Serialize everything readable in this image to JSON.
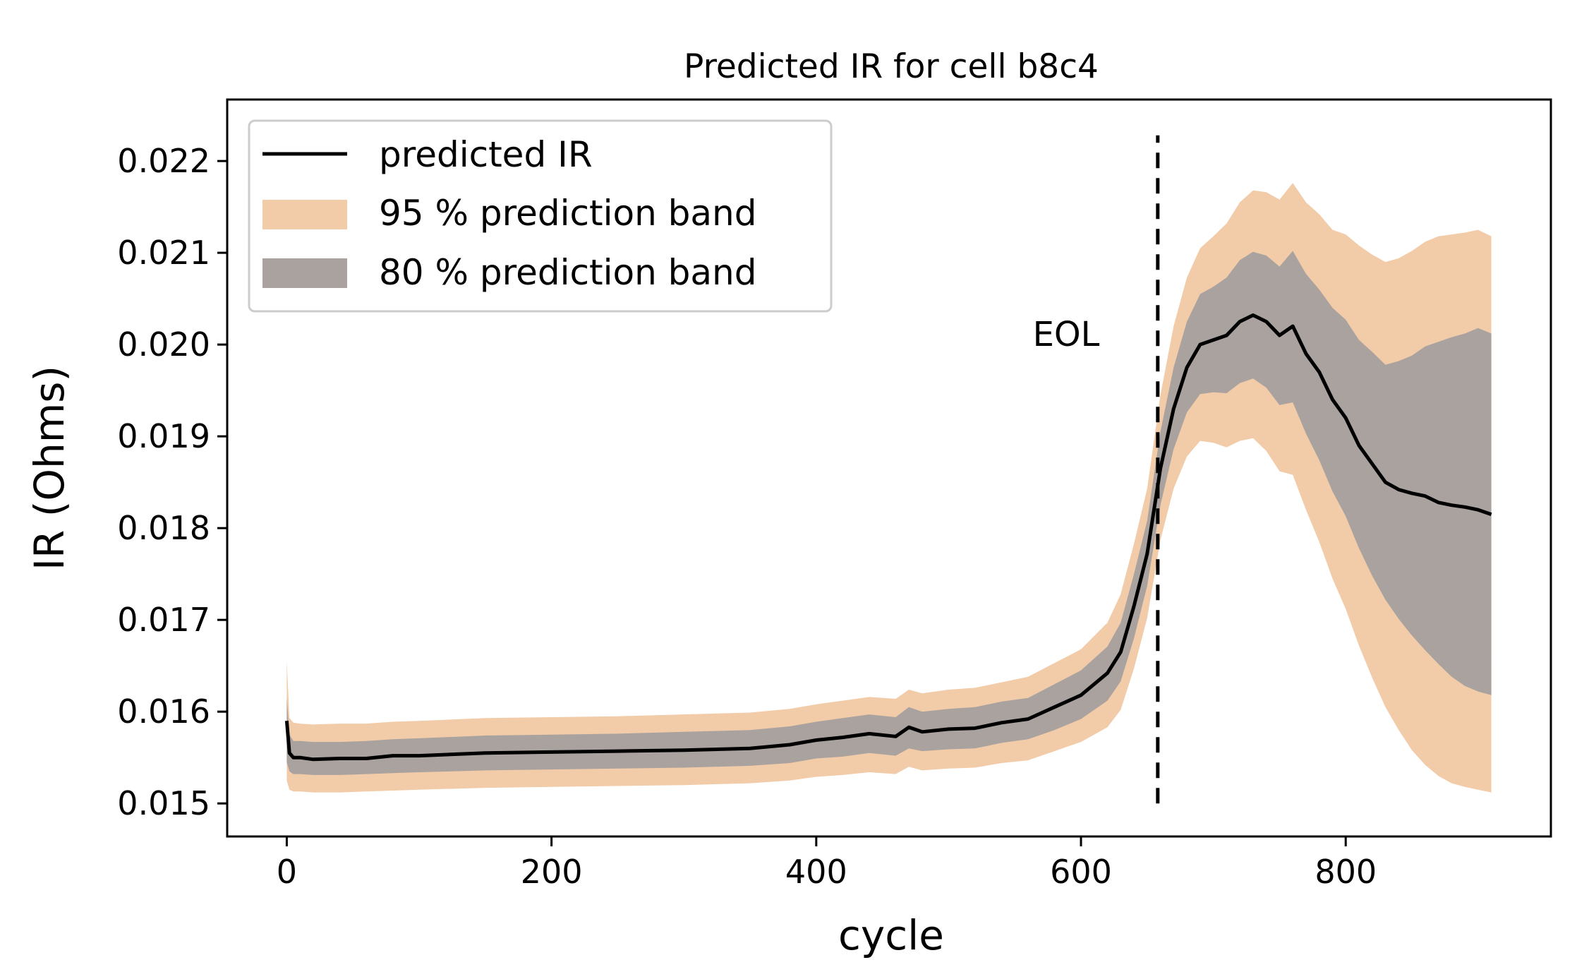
{
  "chart_data": {
    "type": "line",
    "title": "Predicted IR for cell b8c4",
    "xlabel": "cycle",
    "ylabel": "IR (Ohms)",
    "xlim": [
      -45,
      955
    ],
    "ylim": [
      0.01464,
      0.02267
    ],
    "xticks": [
      {
        "value": 0,
        "label": "0"
      },
      {
        "value": 200,
        "label": "200"
      },
      {
        "value": 400,
        "label": "400"
      },
      {
        "value": 600,
        "label": "600"
      },
      {
        "value": 800,
        "label": "800"
      }
    ],
    "yticks": [
      {
        "value": 0.015,
        "label": "0.015"
      },
      {
        "value": 0.016,
        "label": "0.016"
      },
      {
        "value": 0.017,
        "label": "0.017"
      },
      {
        "value": 0.018,
        "label": "0.018"
      },
      {
        "value": 0.019,
        "label": "0.019"
      },
      {
        "value": 0.02,
        "label": "0.020"
      },
      {
        "value": 0.021,
        "label": "0.021"
      },
      {
        "value": 0.022,
        "label": "0.022"
      }
    ],
    "grid": false,
    "legend_position": "top-left",
    "x": [
      0,
      2,
      5,
      10,
      20,
      40,
      60,
      80,
      100,
      150,
      200,
      250,
      300,
      350,
      380,
      400,
      420,
      440,
      460,
      470,
      480,
      500,
      520,
      540,
      560,
      580,
      600,
      620,
      630,
      640,
      650,
      660,
      670,
      680,
      690,
      700,
      710,
      720,
      730,
      740,
      750,
      760,
      770,
      780,
      790,
      800,
      810,
      820,
      830,
      840,
      850,
      860,
      870,
      880,
      890,
      900,
      910
    ],
    "series": [
      {
        "name": "predicted IR",
        "color": "#000000",
        "values": [
          0.0159,
          0.01555,
          0.0155,
          0.0155,
          0.01548,
          0.01549,
          0.01549,
          0.01552,
          0.01552,
          0.01555,
          0.01556,
          0.01557,
          0.01558,
          0.0156,
          0.01564,
          0.01569,
          0.01572,
          0.01576,
          0.01573,
          0.01583,
          0.01578,
          0.01581,
          0.01582,
          0.01588,
          0.01592,
          0.01605,
          0.01618,
          0.01642,
          0.01665,
          0.01715,
          0.01772,
          0.01865,
          0.0193,
          0.01975,
          0.02,
          0.02005,
          0.0201,
          0.02025,
          0.02032,
          0.02025,
          0.0201,
          0.0202,
          0.0199,
          0.0197,
          0.0194,
          0.0192,
          0.0189,
          0.0187,
          0.0185,
          0.01842,
          0.01838,
          0.01835,
          0.01828,
          0.01825,
          0.01823,
          0.0182,
          0.01815
        ]
      },
      {
        "name": "95 % prediction band",
        "color": "#f2cba8",
        "lower": [
          0.01525,
          0.01515,
          0.01513,
          0.01513,
          0.01512,
          0.01512,
          0.01513,
          0.01514,
          0.01515,
          0.01517,
          0.01518,
          0.01519,
          0.0152,
          0.01522,
          0.01525,
          0.01529,
          0.01531,
          0.01534,
          0.01532,
          0.0154,
          0.01536,
          0.01538,
          0.01539,
          0.01544,
          0.01547,
          0.01557,
          0.01567,
          0.01583,
          0.01602,
          0.01647,
          0.01702,
          0.01787,
          0.01843,
          0.01878,
          0.01895,
          0.01893,
          0.01888,
          0.01895,
          0.01898,
          0.01884,
          0.01862,
          0.01858,
          0.0182,
          0.01785,
          0.01745,
          0.01712,
          0.01672,
          0.01637,
          0.01605,
          0.0158,
          0.01558,
          0.01542,
          0.0153,
          0.01522,
          0.01518,
          0.01515,
          0.01512
        ],
        "upper": [
          0.01655,
          0.01593,
          0.01588,
          0.01587,
          0.01586,
          0.01587,
          0.01587,
          0.01589,
          0.0159,
          0.01593,
          0.01594,
          0.01595,
          0.01597,
          0.01599,
          0.01603,
          0.01608,
          0.01612,
          0.01616,
          0.01614,
          0.01624,
          0.0162,
          0.01624,
          0.01626,
          0.01632,
          0.01638,
          0.01653,
          0.01668,
          0.01697,
          0.01728,
          0.01783,
          0.01843,
          0.01945,
          0.0202,
          0.02073,
          0.02105,
          0.02118,
          0.02132,
          0.02155,
          0.02168,
          0.02166,
          0.02158,
          0.02176,
          0.02155,
          0.02142,
          0.02125,
          0.0212,
          0.02108,
          0.02098,
          0.0209,
          0.02094,
          0.02102,
          0.02112,
          0.02118,
          0.0212,
          0.02122,
          0.02125,
          0.02118
        ]
      },
      {
        "name": "80 % prediction band",
        "color": "#a9a29f",
        "lower": [
          0.01545,
          0.01535,
          0.01532,
          0.01532,
          0.01531,
          0.01531,
          0.01532,
          0.01533,
          0.01534,
          0.01536,
          0.01537,
          0.01538,
          0.01539,
          0.01541,
          0.01544,
          0.01549,
          0.01551,
          0.01555,
          0.01552,
          0.0156,
          0.01557,
          0.01559,
          0.0156,
          0.01566,
          0.0157,
          0.0158,
          0.01592,
          0.01612,
          0.01633,
          0.0168,
          0.01737,
          0.01825,
          0.01886,
          0.01926,
          0.01946,
          0.01948,
          0.01947,
          0.01958,
          0.01963,
          0.01953,
          0.01934,
          0.01937,
          0.01903,
          0.01874,
          0.0184,
          0.01813,
          0.01778,
          0.01748,
          0.01722,
          0.01701,
          0.01683,
          0.01667,
          0.01652,
          0.01638,
          0.01628,
          0.01622,
          0.01618
        ],
        "upper": [
          0.01615,
          0.01575,
          0.01568,
          0.01568,
          0.01567,
          0.01567,
          0.01568,
          0.0157,
          0.01571,
          0.01574,
          0.01575,
          0.01576,
          0.01578,
          0.0158,
          0.01584,
          0.01589,
          0.01593,
          0.01597,
          0.01594,
          0.01605,
          0.016,
          0.01603,
          0.01605,
          0.01611,
          0.01615,
          0.0163,
          0.01645,
          0.01671,
          0.01697,
          0.0175,
          0.01808,
          0.01905,
          0.01975,
          0.02025,
          0.02055,
          0.02063,
          0.02073,
          0.02092,
          0.02101,
          0.02097,
          0.02085,
          0.02102,
          0.02077,
          0.0206,
          0.0204,
          0.02027,
          0.02005,
          0.01992,
          0.01978,
          0.01982,
          0.01988,
          0.01998,
          0.02003,
          0.02008,
          0.02012,
          0.02018,
          0.02012
        ]
      }
    ],
    "eol_line": {
      "x": 658,
      "y_start": 0.015,
      "y_end": 0.02228,
      "style": "dashed",
      "color": "#000000"
    },
    "annotation": {
      "text": "EOL",
      "x": 605,
      "y": 0.02014
    }
  }
}
